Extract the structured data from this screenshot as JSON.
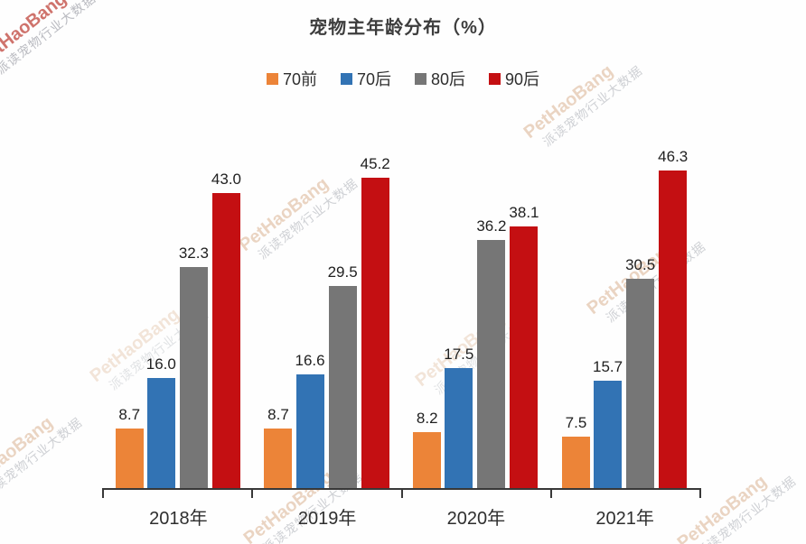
{
  "chart": {
    "title": "宠物主年龄分布（%）"
  },
  "watermark": {
    "line1": "PetHaoBang",
    "line2": "派读宠物行业大数据"
  },
  "chart_data": {
    "type": "bar",
    "title": "宠物主年龄分布（%）",
    "categories": [
      "2018年",
      "2019年",
      "2020年",
      "2021年"
    ],
    "series": [
      {
        "name": "70前",
        "color": "#EC8438",
        "values": [
          8.7,
          8.7,
          8.2,
          7.5
        ]
      },
      {
        "name": "70后",
        "color": "#3273B4",
        "values": [
          16.0,
          16.6,
          17.5,
          15.7
        ]
      },
      {
        "name": "80后",
        "color": "#767676",
        "values": [
          32.3,
          29.5,
          36.2,
          30.5
        ]
      },
      {
        "name": "90后",
        "color": "#C40F12",
        "values": [
          43.0,
          45.2,
          38.1,
          46.3
        ]
      }
    ],
    "ylim": [
      0,
      50
    ],
    "value_labels": true,
    "value_label_format": "one-decimal",
    "legend_position": "top",
    "grid": false,
    "axis_color": "#383838"
  }
}
